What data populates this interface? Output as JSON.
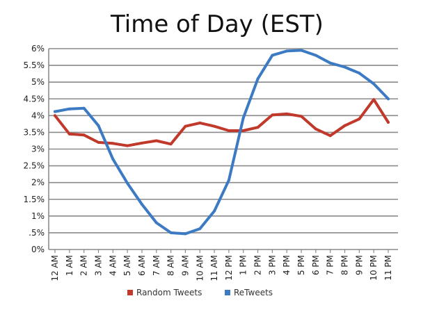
{
  "chart_data": {
    "type": "line",
    "title": "Time of Day (EST)",
    "xlabel": "",
    "ylabel": "",
    "categories": [
      "12 AM",
      "1 AM",
      "2 AM",
      "3 AM",
      "4 AM",
      "5 AM",
      "6 AM",
      "7 AM",
      "8 AM",
      "9 AM",
      "10 AM",
      "11 AM",
      "12 PM",
      "1 PM",
      "2 PM",
      "3 PM",
      "4 PM",
      "5 PM",
      "6 PM",
      "7 PM",
      "8 PM",
      "9 PM",
      "10 PM",
      "11 PM"
    ],
    "ylim": [
      0,
      6
    ],
    "yticks": [
      0,
      0.5,
      1,
      1.5,
      2,
      2.5,
      3,
      3.5,
      4,
      4.5,
      5,
      5.5,
      6
    ],
    "ytick_labels": [
      "0%",
      ".5%",
      "1%",
      "1.5%",
      "2%",
      "2.5%",
      "3%",
      "3.5%",
      "4%",
      "4.5%",
      "5%",
      "5.5%",
      "6%"
    ],
    "grid": true,
    "legend_position": "bottom",
    "series": [
      {
        "name": "Random Tweets",
        "color": "#c0392b",
        "values": [
          4.0,
          3.45,
          3.42,
          3.2,
          3.17,
          3.1,
          3.18,
          3.25,
          3.15,
          3.68,
          3.78,
          3.68,
          3.55,
          3.55,
          3.65,
          4.02,
          4.05,
          3.98,
          3.6,
          3.4,
          3.7,
          3.9,
          4.48,
          3.8
        ]
      },
      {
        "name": "ReTweets",
        "color": "#3d7ac4",
        "values": [
          4.12,
          4.2,
          4.22,
          3.7,
          2.7,
          1.98,
          1.35,
          0.8,
          0.5,
          0.47,
          0.62,
          1.15,
          2.07,
          3.93,
          5.1,
          5.8,
          5.93,
          5.95,
          5.8,
          5.57,
          5.45,
          5.27,
          4.95,
          4.5
        ]
      }
    ]
  }
}
